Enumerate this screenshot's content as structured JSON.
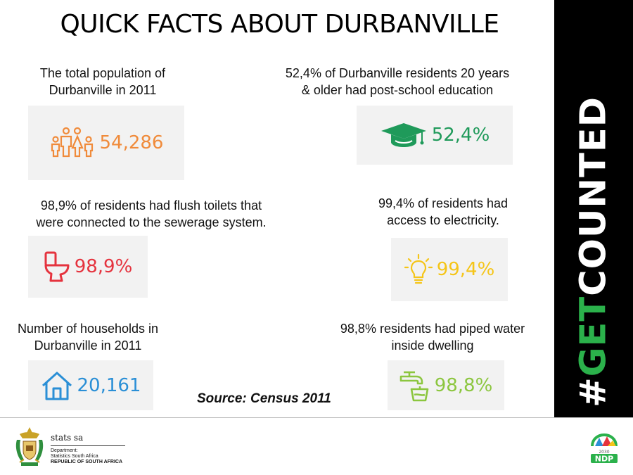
{
  "title": "QUICK FACTS ABOUT DURBANVILLE",
  "sidebar": {
    "hashtag_prefix": "#",
    "hashtag_accent": "GET",
    "hashtag_rest": "COUNTED",
    "accent_color": "#2bb14b"
  },
  "facts": {
    "population": {
      "label_line1": "The total population of",
      "label_line2": "Durbanville in 2011",
      "value": "54,286",
      "icon": "family-icon",
      "color": "#f08b3b"
    },
    "education": {
      "label_line1": "52,4% of Durbanville residents 20 years",
      "label_line2": "& older had post-school education",
      "value": "52,4%",
      "icon": "graduation-cap-icon",
      "color": "#1f9a5a"
    },
    "toilets": {
      "label_line1": "98,9% of residents had flush toilets that",
      "label_line2": "were connected to the sewerage system.",
      "value": "98,9%",
      "icon": "toilet-icon",
      "color": "#e5333e"
    },
    "electricity": {
      "label_line1": "99,4% of residents had",
      "label_line2": "access to electricity.",
      "value": "99,4%",
      "icon": "lightbulb-icon",
      "color": "#f5c518"
    },
    "households": {
      "label_line1": "Number of households in",
      "label_line2": "Durbanville in 2011",
      "value": "20,161",
      "icon": "house-icon",
      "color": "#2a8fd6"
    },
    "water": {
      "label_line1": "98,8% residents had piped water",
      "label_line2": "inside dwelling",
      "value": "98,8%",
      "icon": "water-tap-icon",
      "color": "#8cc63f"
    }
  },
  "source": "Source: Census 2011",
  "footer": {
    "agency_name": "stats sa",
    "department": "Department:",
    "department_name": "Statistics South Africa",
    "country": "REPUBLIC OF SOUTH AFRICA",
    "ndp_text": "NDP",
    "ndp_year": "2030"
  }
}
